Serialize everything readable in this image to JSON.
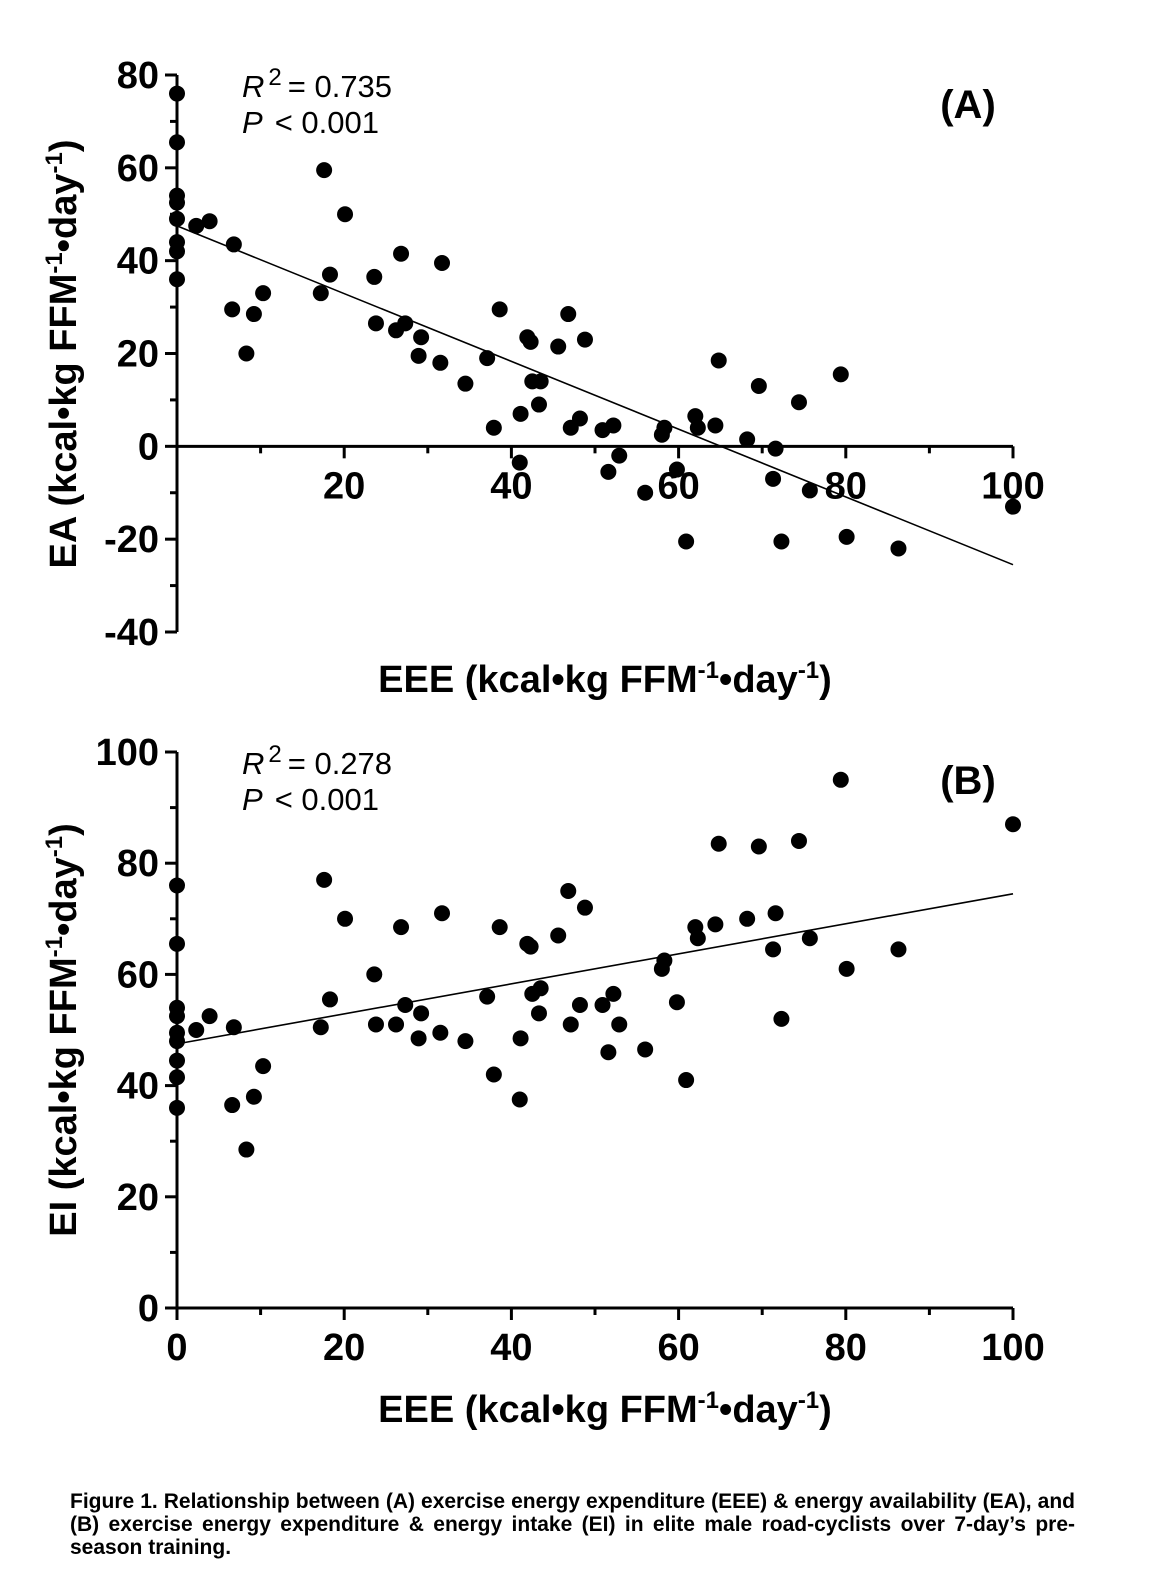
{
  "chart_data": [
    {
      "type": "scatter",
      "panel_label": "(A)",
      "stats": {
        "r2": "= 0.735",
        "p": "< 0.001"
      },
      "xlabel": {
        "pre": "EEE (kcal•kg FFM",
        "sup1": "-1",
        "mid": "•day",
        "sup2": "-1",
        "post": ")"
      },
      "ylabel": {
        "pre": "EA (kcal•kg FFM",
        "sup1": "-1",
        "mid": "•day",
        "sup2": "-1",
        "post": ")"
      },
      "xlim": [
        0,
        100
      ],
      "ylim": [
        -40,
        80
      ],
      "x_ticks": [
        20,
        40,
        60,
        80,
        100
      ],
      "y_ticks": [
        -40,
        -20,
        0,
        20,
        40,
        60,
        80
      ],
      "x_tick_labels": [
        "20",
        "40",
        "60",
        "80",
        "100"
      ],
      "y_tick_labels": [
        "-40",
        "-20",
        "0",
        "20",
        "40",
        "60",
        "80"
      ],
      "regression": {
        "x": [
          0,
          100
        ],
        "y": [
          47.5,
          -25.5
        ]
      },
      "points": [
        [
          0,
          76
        ],
        [
          0,
          65.5
        ],
        [
          0,
          54
        ],
        [
          0,
          52.5
        ],
        [
          0,
          49
        ],
        [
          0,
          44
        ],
        [
          0,
          42
        ],
        [
          0,
          36
        ],
        [
          2.3,
          47.5
        ],
        [
          3.9,
          48.5
        ],
        [
          6.8,
          43.5
        ],
        [
          6.6,
          29.5
        ],
        [
          8.3,
          20
        ],
        [
          9.2,
          28.5
        ],
        [
          10.3,
          33
        ],
        [
          17.6,
          59.5
        ],
        [
          17.2,
          33
        ],
        [
          18.3,
          37
        ],
        [
          20.1,
          50
        ],
        [
          23.6,
          36.5
        ],
        [
          23.8,
          26.5
        ],
        [
          26.2,
          25
        ],
        [
          26.8,
          41.5
        ],
        [
          27.3,
          26.5
        ],
        [
          28.9,
          19.5
        ],
        [
          29.2,
          23.5
        ],
        [
          31.5,
          18
        ],
        [
          31.7,
          39.5
        ],
        [
          34.5,
          13.5
        ],
        [
          37.1,
          19
        ],
        [
          37.9,
          4
        ],
        [
          38.6,
          29.5
        ],
        [
          41.1,
          7
        ],
        [
          41.0,
          -3.5
        ],
        [
          41.9,
          23.5
        ],
        [
          42.3,
          22.5
        ],
        [
          42.5,
          14
        ],
        [
          43.3,
          9
        ],
        [
          43.5,
          14
        ],
        [
          45.6,
          21.5
        ],
        [
          46.8,
          28.5
        ],
        [
          47.1,
          4
        ],
        [
          48.2,
          6
        ],
        [
          48.8,
          23
        ],
        [
          50.9,
          3.5
        ],
        [
          51.6,
          -5.5
        ],
        [
          52.2,
          4.5
        ],
        [
          52.9,
          -2
        ],
        [
          56.0,
          -10
        ],
        [
          58.0,
          2.5
        ],
        [
          58.3,
          4
        ],
        [
          59.8,
          -5
        ],
        [
          60.9,
          -20.5
        ],
        [
          62.0,
          6.5
        ],
        [
          62.3,
          4
        ],
        [
          64.4,
          4.5
        ],
        [
          64.8,
          18.5
        ],
        [
          68.2,
          1.5
        ],
        [
          69.6,
          13
        ],
        [
          71.3,
          -7
        ],
        [
          71.6,
          -0.5
        ],
        [
          72.3,
          -20.5
        ],
        [
          74.4,
          9.5
        ],
        [
          75.7,
          -9.5
        ],
        [
          79.4,
          15.5
        ],
        [
          80.1,
          -19.5
        ],
        [
          86.3,
          -22
        ],
        [
          100,
          -13
        ]
      ]
    },
    {
      "type": "scatter",
      "panel_label": "(B)",
      "stats": {
        "r2": "= 0.278",
        "p": "< 0.001"
      },
      "xlabel": {
        "pre": "EEE (kcal•kg FFM",
        "sup1": "-1",
        "mid": "•day",
        "sup2": "-1",
        "post": ")"
      },
      "ylabel": {
        "pre": "EI (kcal•kg FFM",
        "sup1": "-1",
        "mid": "•day",
        "sup2": "-1",
        "post": ")"
      },
      "xlim": [
        0,
        100
      ],
      "ylim": [
        0,
        100
      ],
      "x_ticks": [
        0,
        20,
        40,
        60,
        80,
        100
      ],
      "y_ticks": [
        0,
        20,
        40,
        60,
        80,
        100
      ],
      "x_tick_labels": [
        "0",
        "20",
        "40",
        "60",
        "80",
        "100"
      ],
      "y_tick_labels": [
        "0",
        "20",
        "40",
        "60",
        "80",
        "100"
      ],
      "regression": {
        "x": [
          0,
          100
        ],
        "y": [
          47.5,
          74.5
        ]
      },
      "points": [
        [
          0,
          76
        ],
        [
          0,
          65.5
        ],
        [
          0,
          54
        ],
        [
          0,
          52.5
        ],
        [
          0,
          49.5
        ],
        [
          0,
          48
        ],
        [
          0,
          44.5
        ],
        [
          0,
          41.5
        ],
        [
          0,
          36
        ],
        [
          2.3,
          50
        ],
        [
          3.9,
          52.5
        ],
        [
          6.8,
          50.5
        ],
        [
          6.6,
          36.5
        ],
        [
          8.3,
          28.5
        ],
        [
          9.2,
          38
        ],
        [
          10.3,
          43.5
        ],
        [
          17.6,
          77
        ],
        [
          17.2,
          50.5
        ],
        [
          18.3,
          55.5
        ],
        [
          20.1,
          70
        ],
        [
          23.6,
          60
        ],
        [
          23.8,
          51
        ],
        [
          26.2,
          51
        ],
        [
          26.8,
          68.5
        ],
        [
          27.3,
          54.5
        ],
        [
          28.9,
          48.5
        ],
        [
          29.2,
          53
        ],
        [
          31.5,
          49.5
        ],
        [
          31.7,
          71
        ],
        [
          34.5,
          48
        ],
        [
          37.1,
          56
        ],
        [
          37.9,
          42
        ],
        [
          38.6,
          68.5
        ],
        [
          41.1,
          48.5
        ],
        [
          41.0,
          37.5
        ],
        [
          41.9,
          65.5
        ],
        [
          42.3,
          65
        ],
        [
          42.5,
          56.5
        ],
        [
          43.3,
          53
        ],
        [
          43.5,
          57.5
        ],
        [
          45.6,
          67
        ],
        [
          46.8,
          75
        ],
        [
          47.1,
          51
        ],
        [
          48.2,
          54.5
        ],
        [
          48.8,
          72
        ],
        [
          50.9,
          54.5
        ],
        [
          51.6,
          46
        ],
        [
          52.2,
          56.5
        ],
        [
          52.9,
          51
        ],
        [
          56.0,
          46.5
        ],
        [
          58.0,
          61
        ],
        [
          58.3,
          62.5
        ],
        [
          59.8,
          55
        ],
        [
          60.9,
          41
        ],
        [
          62.0,
          68.5
        ],
        [
          62.3,
          66.5
        ],
        [
          64.4,
          69
        ],
        [
          64.8,
          83.5
        ],
        [
          68.2,
          70
        ],
        [
          69.6,
          83
        ],
        [
          71.3,
          64.5
        ],
        [
          71.6,
          71
        ],
        [
          72.3,
          52
        ],
        [
          74.4,
          84
        ],
        [
          75.7,
          66.5
        ],
        [
          79.4,
          95
        ],
        [
          80.1,
          61
        ],
        [
          86.3,
          64.5
        ],
        [
          100,
          87
        ]
      ]
    }
  ],
  "caption": "Figure 1. Relationship between (A) exercise energy expenditure (EEE) & energy availability (EA), and (B) exercise energy expenditure & energy intake (EI) in elite male road-cyclists over 7-day’s pre-season training."
}
